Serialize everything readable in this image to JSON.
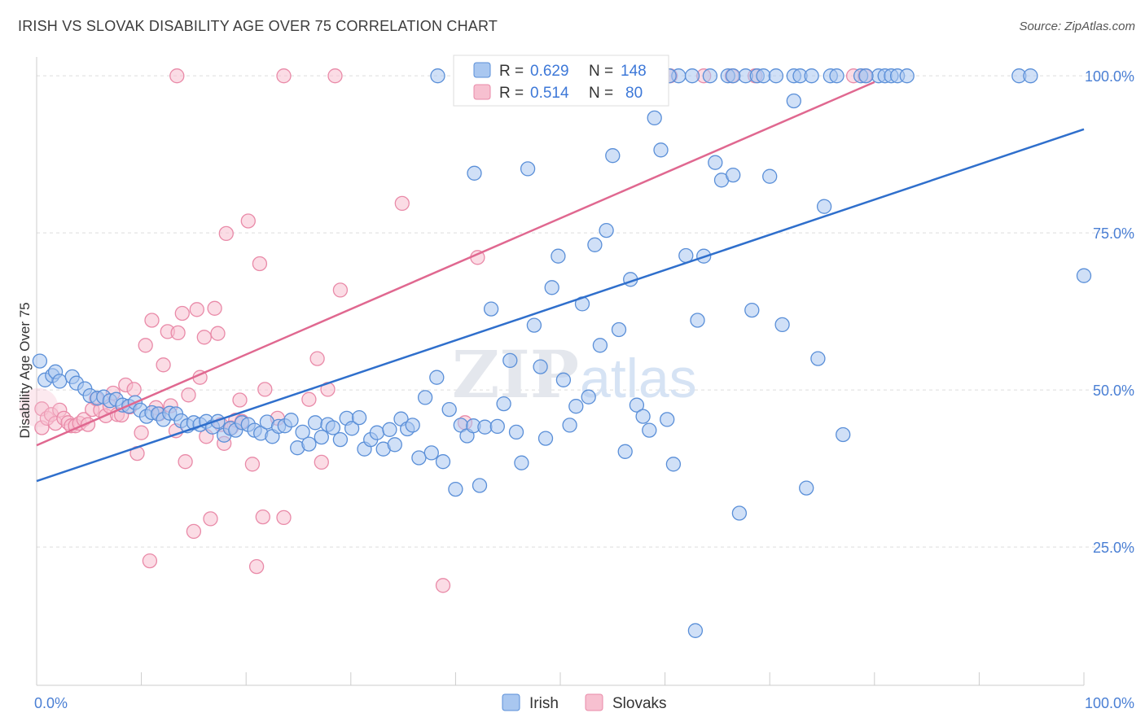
{
  "header": {
    "title": "IRISH VS SLOVAK DISABILITY AGE OVER 75 CORRELATION CHART",
    "source": "Source: ZipAtlas.com"
  },
  "watermark": {
    "text_zip": "ZIP",
    "text_atlas": "atlas"
  },
  "legend": {
    "r_label": "R =",
    "n_label": "N =",
    "irish": {
      "r": "0.629",
      "n": "148"
    },
    "slovaks": {
      "r": "0.514",
      "n": "80"
    }
  },
  "colors": {
    "irish_fill": "#a9c7f0",
    "irish_stroke": "#5a8fd8",
    "irish_line": "#2f6fcc",
    "slovaks_fill": "#f7c0d0",
    "slovaks_stroke": "#e98aa8",
    "slovaks_line": "#e06890",
    "tick_text": "#4a7fd4",
    "grid": "#dddddd"
  },
  "chart_data": {
    "type": "scatter",
    "title": "IRISH VS SLOVAK DISABILITY AGE OVER 75 CORRELATION CHART",
    "xlabel": "",
    "ylabel": "Disability Age Over 75",
    "xlim": [
      0,
      100
    ],
    "ylim": [
      3,
      103
    ],
    "x_tick_labels": [
      "0.0%",
      "100.0%"
    ],
    "y_ticks": [
      25,
      50,
      75,
      100
    ],
    "y_tick_labels": [
      "25.0%",
      "50.0%",
      "75.0%",
      "100.0%"
    ],
    "grid": true,
    "legend_position": "top-center",
    "series": [
      {
        "name": "Irish",
        "trend": {
          "x": [
            0,
            100
          ],
          "y": [
            35.5,
            91.5
          ]
        },
        "points": [
          [
            0.3,
            54.6
          ],
          [
            0.8,
            51.6
          ],
          [
            1.5,
            52.3
          ],
          [
            1.8,
            52.9
          ],
          [
            2.2,
            51.4
          ],
          [
            3.4,
            52.1
          ],
          [
            3.8,
            51.1
          ],
          [
            4.6,
            50.2
          ],
          [
            5.1,
            49.1
          ],
          [
            5.8,
            48.7
          ],
          [
            6.4,
            48.9
          ],
          [
            7.0,
            48.3
          ],
          [
            7.6,
            48.5
          ],
          [
            8.2,
            47.6
          ],
          [
            8.8,
            47.4
          ],
          [
            9.4,
            48.0
          ],
          [
            9.9,
            46.8
          ],
          [
            10.5,
            45.8
          ],
          [
            11.0,
            46.4
          ],
          [
            11.6,
            46.2
          ],
          [
            12.1,
            45.3
          ],
          [
            12.7,
            46.3
          ],
          [
            13.3,
            46.2
          ],
          [
            13.8,
            45.1
          ],
          [
            14.4,
            44.3
          ],
          [
            15.0,
            44.8
          ],
          [
            15.6,
            44.5
          ],
          [
            16.2,
            45.0
          ],
          [
            16.8,
            44.1
          ],
          [
            17.3,
            45.0
          ],
          [
            17.9,
            42.8
          ],
          [
            18.5,
            43.9
          ],
          [
            19.0,
            43.6
          ],
          [
            19.6,
            44.8
          ],
          [
            20.2,
            44.5
          ],
          [
            20.8,
            43.6
          ],
          [
            21.4,
            43.1
          ],
          [
            22.0,
            44.9
          ],
          [
            22.5,
            42.6
          ],
          [
            23.1,
            44.2
          ],
          [
            23.7,
            44.3
          ],
          [
            24.3,
            45.2
          ],
          [
            24.9,
            40.8
          ],
          [
            25.4,
            43.3
          ],
          [
            26.0,
            41.4
          ],
          [
            26.6,
            44.8
          ],
          [
            27.2,
            42.5
          ],
          [
            27.8,
            44.5
          ],
          [
            28.3,
            44.0
          ],
          [
            29.0,
            42.1
          ],
          [
            29.6,
            45.5
          ],
          [
            30.1,
            43.9
          ],
          [
            30.8,
            45.6
          ],
          [
            31.3,
            40.6
          ],
          [
            31.9,
            42.1
          ],
          [
            32.5,
            43.2
          ],
          [
            33.1,
            40.6
          ],
          [
            33.7,
            43.7
          ],
          [
            34.2,
            41.3
          ],
          [
            34.8,
            45.4
          ],
          [
            35.4,
            43.8
          ],
          [
            35.9,
            44.4
          ],
          [
            36.5,
            39.2
          ],
          [
            37.1,
            48.8
          ],
          [
            37.7,
            40.0
          ],
          [
            38.2,
            52.0
          ],
          [
            38.8,
            38.6
          ],
          [
            39.4,
            46.9
          ],
          [
            40.0,
            34.2
          ],
          [
            40.5,
            44.4
          ],
          [
            41.1,
            42.7
          ],
          [
            41.7,
            44.3
          ],
          [
            42.3,
            34.8
          ],
          [
            42.8,
            44.1
          ],
          [
            43.4,
            62.9
          ],
          [
            44.0,
            44.2
          ],
          [
            44.6,
            47.8
          ],
          [
            45.2,
            54.7
          ],
          [
            45.8,
            43.3
          ],
          [
            46.3,
            38.4
          ],
          [
            46.9,
            85.2
          ],
          [
            47.5,
            60.3
          ],
          [
            48.1,
            53.7
          ],
          [
            48.6,
            42.3
          ],
          [
            49.2,
            66.3
          ],
          [
            49.8,
            71.3
          ],
          [
            50.3,
            51.6
          ],
          [
            50.9,
            44.4
          ],
          [
            51.5,
            47.4
          ],
          [
            52.1,
            63.7
          ],
          [
            52.7,
            48.9
          ],
          [
            53.3,
            73.1
          ],
          [
            53.8,
            57.1
          ],
          [
            54.4,
            75.4
          ],
          [
            55.0,
            87.3
          ],
          [
            55.6,
            59.6
          ],
          [
            56.2,
            40.2
          ],
          [
            56.7,
            67.6
          ],
          [
            57.3,
            47.6
          ],
          [
            57.9,
            45.8
          ],
          [
            58.5,
            43.6
          ],
          [
            59.0,
            93.3
          ],
          [
            59.6,
            88.2
          ],
          [
            60.2,
            45.3
          ],
          [
            60.8,
            38.2
          ],
          [
            61.3,
            100.0
          ],
          [
            62.0,
            71.4
          ],
          [
            62.6,
            100.0
          ],
          [
            63.1,
            61.1
          ],
          [
            63.7,
            71.3
          ],
          [
            64.3,
            100.0
          ],
          [
            64.8,
            86.2
          ],
          [
            65.4,
            83.4
          ],
          [
            66.0,
            100.0
          ],
          [
            66.5,
            84.2
          ],
          [
            67.1,
            30.4
          ],
          [
            67.7,
            100.0
          ],
          [
            68.3,
            62.7
          ],
          [
            68.8,
            100.0
          ],
          [
            69.4,
            100.0
          ],
          [
            70.0,
            84.0
          ],
          [
            70.6,
            100.0
          ],
          [
            71.2,
            60.4
          ],
          [
            72.3,
            100.0
          ],
          [
            72.9,
            100.0
          ],
          [
            73.5,
            34.4
          ],
          [
            74.0,
            100.0
          ],
          [
            74.6,
            55.0
          ],
          [
            75.2,
            79.2
          ],
          [
            75.8,
            100.0
          ],
          [
            76.4,
            100.0
          ],
          [
            77.0,
            42.9
          ],
          [
            78.7,
            100.0
          ],
          [
            80.4,
            100.0
          ],
          [
            81.0,
            100.0
          ],
          [
            81.6,
            100.0
          ],
          [
            82.2,
            100.0
          ],
          [
            83.1,
            100.0
          ],
          [
            93.8,
            100.0
          ],
          [
            94.9,
            100.0
          ],
          [
            100.0,
            68.2
          ],
          [
            62.9,
            11.7
          ],
          [
            60.4,
            100.0
          ],
          [
            66.5,
            100.0
          ],
          [
            72.3,
            96.0
          ],
          [
            41.8,
            84.5
          ],
          [
            38.3,
            100.0
          ],
          [
            79.2,
            100.0
          ]
        ]
      },
      {
        "name": "Slovaks",
        "trend": {
          "x": [
            0,
            80
          ],
          "y": [
            41.2,
            99.0
          ]
        },
        "points": [
          [
            0.5,
            47.0
          ],
          [
            0.5,
            44.0
          ],
          [
            1.0,
            45.5
          ],
          [
            1.4,
            46.1
          ],
          [
            1.8,
            44.7
          ],
          [
            2.2,
            46.8
          ],
          [
            2.6,
            45.5
          ],
          [
            3.0,
            44.8
          ],
          [
            3.3,
            44.3
          ],
          [
            3.7,
            44.3
          ],
          [
            4.1,
            44.7
          ],
          [
            4.5,
            45.3
          ],
          [
            4.9,
            44.5
          ],
          [
            5.3,
            46.9
          ],
          [
            5.7,
            48.6
          ],
          [
            6.1,
            46.8
          ],
          [
            6.6,
            45.9
          ],
          [
            7.0,
            47.4
          ],
          [
            7.3,
            49.5
          ],
          [
            7.7,
            46.1
          ],
          [
            8.1,
            46.0
          ],
          [
            8.5,
            50.8
          ],
          [
            8.9,
            47.3
          ],
          [
            9.3,
            50.1
          ],
          [
            9.6,
            39.9
          ],
          [
            10.0,
            43.2
          ],
          [
            10.4,
            57.1
          ],
          [
            10.8,
            22.8
          ],
          [
            11.0,
            61.1
          ],
          [
            11.4,
            47.2
          ],
          [
            11.7,
            46.2
          ],
          [
            12.1,
            54.0
          ],
          [
            12.5,
            59.3
          ],
          [
            12.8,
            47.5
          ],
          [
            13.3,
            43.5
          ],
          [
            13.5,
            59.1
          ],
          [
            13.9,
            62.2
          ],
          [
            14.2,
            38.6
          ],
          [
            14.5,
            49.2
          ],
          [
            15.0,
            27.5
          ],
          [
            15.3,
            62.8
          ],
          [
            15.6,
            52.0
          ],
          [
            16.0,
            58.4
          ],
          [
            16.2,
            42.6
          ],
          [
            16.6,
            29.5
          ],
          [
            17.0,
            63.0
          ],
          [
            17.3,
            59.0
          ],
          [
            17.6,
            44.5
          ],
          [
            17.9,
            41.5
          ],
          [
            18.1,
            74.9
          ],
          [
            18.6,
            44.0
          ],
          [
            19.0,
            45.2
          ],
          [
            19.4,
            48.4
          ],
          [
            19.6,
            45.0
          ],
          [
            20.2,
            76.9
          ],
          [
            20.6,
            38.2
          ],
          [
            21.0,
            21.9
          ],
          [
            21.3,
            70.1
          ],
          [
            21.6,
            29.8
          ],
          [
            21.8,
            50.1
          ],
          [
            23.0,
            45.5
          ],
          [
            23.6,
            29.7
          ],
          [
            26.0,
            48.5
          ],
          [
            26.8,
            55.0
          ],
          [
            27.2,
            38.5
          ],
          [
            27.8,
            50.1
          ],
          [
            29.0,
            65.9
          ],
          [
            34.9,
            79.7
          ],
          [
            38.8,
            18.9
          ],
          [
            42.1,
            71.1
          ],
          [
            40.9,
            44.8
          ],
          [
            13.4,
            100.0
          ],
          [
            23.6,
            100.0
          ],
          [
            28.5,
            100.0
          ],
          [
            60.5,
            100.0
          ],
          [
            68.6,
            100.0
          ],
          [
            63.7,
            100.0
          ],
          [
            66.4,
            100.0
          ],
          [
            78.0,
            100.0
          ],
          [
            79.1,
            100.0
          ]
        ]
      }
    ]
  }
}
